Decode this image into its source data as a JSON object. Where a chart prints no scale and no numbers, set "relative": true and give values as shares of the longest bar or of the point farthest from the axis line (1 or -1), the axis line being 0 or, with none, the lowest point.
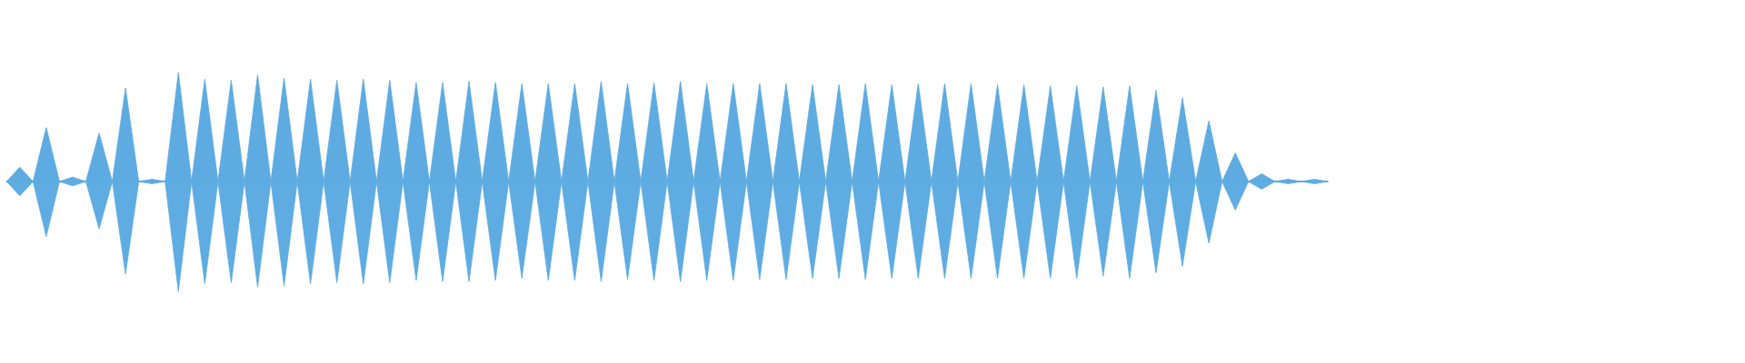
{
  "chart_data": {
    "type": "area",
    "relative": true,
    "categories": [
      null,
      null,
      null,
      null,
      null,
      null,
      null,
      null,
      null,
      null,
      null,
      null,
      null,
      null,
      null,
      null,
      null,
      null,
      null,
      null,
      null,
      null,
      null,
      null,
      null,
      null,
      null,
      null,
      null,
      null,
      null,
      null,
      null,
      null,
      null,
      null,
      null,
      null,
      null,
      null,
      null,
      null,
      null,
      null,
      null,
      null,
      null,
      null,
      null,
      null,
      null,
      null,
      null,
      null,
      null,
      null,
      null,
      null,
      null,
      null,
      null,
      null,
      null,
      null,
      null,
      null,
      null,
      null,
      null,
      null,
      null,
      null,
      null,
      null,
      null,
      null,
      null,
      null,
      null,
      null,
      null,
      null,
      null,
      null,
      null,
      null,
      null,
      null,
      null,
      null,
      null,
      null,
      null,
      null,
      null,
      null,
      null,
      null,
      null,
      null,
      null
    ],
    "series": [
      {
        "color": "#5dabe1",
        "values": [
          0,
          0.13,
          0,
          0.49,
          0,
          0.04,
          0,
          0.44,
          0,
          0.85,
          0,
          0.02,
          0,
          0.99,
          0,
          0.93,
          0,
          0.92,
          0,
          0.97,
          0,
          0.94,
          0,
          0.93,
          0,
          0.92,
          0,
          0.93,
          0,
          0.92,
          0,
          0.9,
          0,
          0.9,
          0,
          0.91,
          0,
          0.9,
          0,
          0.89,
          0,
          0.89,
          0,
          0.89,
          0,
          0.91,
          0,
          0.89,
          0,
          0.9,
          0,
          0.91,
          0,
          0.89,
          0,
          0.89,
          0,
          0.89,
          0,
          0.89,
          0,
          0.88,
          0,
          0.88,
          0,
          0.89,
          0,
          0.88,
          0,
          0.89,
          0,
          0.89,
          0,
          0.89,
          0,
          0.88,
          0,
          0.88,
          0,
          0.87,
          0,
          0.87,
          0,
          0.86,
          0,
          0.87,
          0,
          0.83,
          0,
          0.76,
          0,
          0.55,
          0,
          0.26,
          0,
          0.07,
          0,
          0.02,
          0,
          0.02,
          0
        ]
      },
      {
        "color": "#5eace2",
        "values": [
          0,
          -0.13,
          0,
          -0.5,
          0,
          -0.04,
          0,
          -0.43,
          0,
          -0.84,
          0,
          -0.02,
          0,
          -1,
          0,
          -0.93,
          0,
          -0.92,
          0,
          -0.96,
          0,
          -0.95,
          0,
          -0.93,
          0,
          -0.92,
          0,
          -0.93,
          0,
          -0.92,
          0,
          -0.9,
          0,
          -0.91,
          0,
          -0.91,
          0,
          -0.9,
          0,
          -0.88,
          0,
          -0.9,
          0,
          -0.9,
          0,
          -0.91,
          0,
          -0.89,
          0,
          -0.9,
          0,
          -0.91,
          0,
          -0.9,
          0,
          -0.9,
          0,
          -0.89,
          0,
          -0.89,
          0,
          -0.88,
          0,
          -0.88,
          0,
          -0.89,
          0,
          -0.88,
          0,
          -0.88,
          0,
          -0.88,
          0,
          -0.88,
          0,
          -0.88,
          0,
          -0.88,
          0,
          -0.88,
          0,
          -0.88,
          0,
          -0.86,
          0,
          -0.88,
          0,
          -0.83,
          0,
          -0.77,
          0,
          -0.56,
          0,
          -0.26,
          0,
          -0.07,
          0,
          -0.02,
          0,
          -0.02,
          0
        ]
      }
    ]
  }
}
